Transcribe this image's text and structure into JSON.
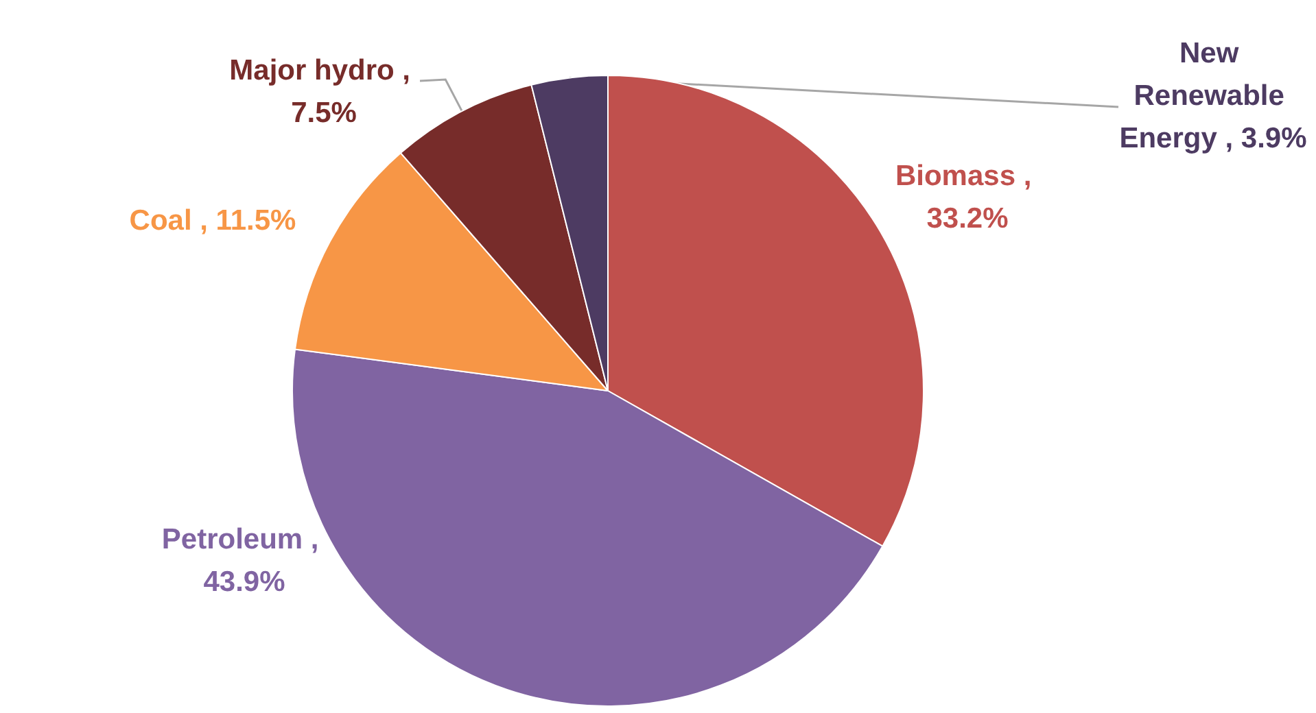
{
  "chart_data": {
    "type": "pie",
    "categories": [
      "Biomass",
      "Petroleum",
      "Coal",
      "Major hydro",
      "New Renewable Energy"
    ],
    "values": [
      33.2,
      43.9,
      11.5,
      7.5,
      3.9
    ],
    "colors": [
      "#c0504d",
      "#8064a2",
      "#f79646",
      "#772c2a",
      "#4d3b62"
    ],
    "value_labels": [
      ", 33.2%",
      ", 43.9%",
      ", 11.5%",
      ", 7.5%",
      ", 3.9%"
    ]
  }
}
